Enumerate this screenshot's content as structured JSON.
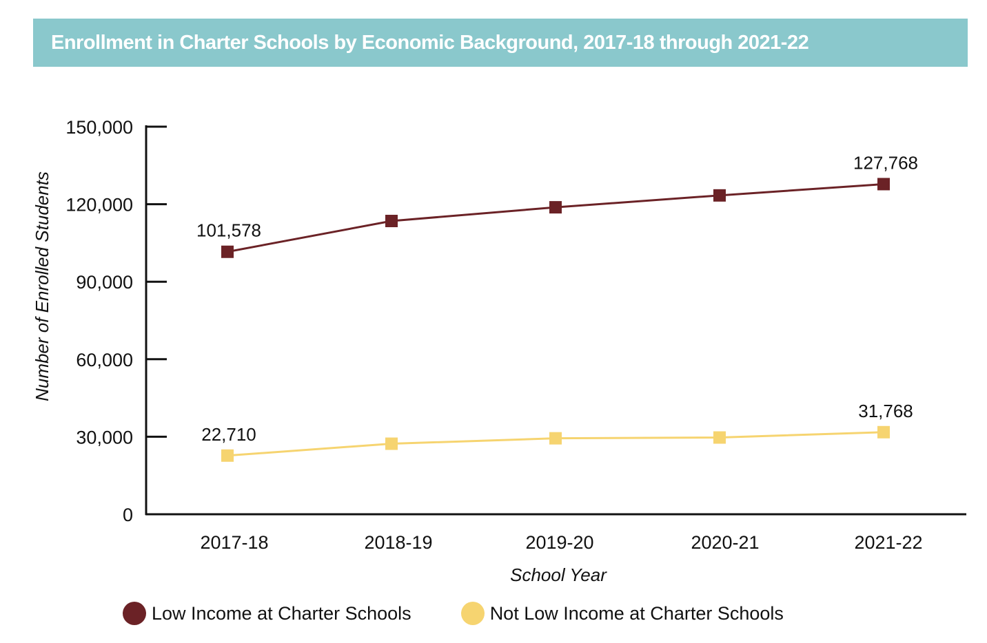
{
  "colors": {
    "banner": "#8ac8cc",
    "axis": "#111111",
    "low_income": "#6b2226",
    "not_low_income": "#f6d470"
  },
  "chart_data": {
    "type": "line",
    "title": "Enrollment in Charter Schools by Economic Background, 2017-18 through 2021-22",
    "xlabel": "School Year",
    "ylabel": "Number of Enrolled Students",
    "categories": [
      "2017-18",
      "2018-19",
      "2019-20",
      "2020-21",
      "2021-22"
    ],
    "ylim": [
      0,
      150000
    ],
    "yticks": [
      0,
      30000,
      60000,
      90000,
      120000,
      150000
    ],
    "ytick_labels": [
      "0",
      "30,000",
      "60,000",
      "90,000",
      "120,000",
      "150,000"
    ],
    "grid": false,
    "legend_position": "bottom",
    "series": [
      {
        "name": "Low Income at Charter Schools",
        "color": "#6b2226",
        "values": [
          101578,
          113500,
          118800,
          123400,
          127768
        ],
        "labels": [
          {
            "index": 0,
            "text": "101,578"
          },
          {
            "index": 4,
            "text": "127,768"
          }
        ]
      },
      {
        "name": "Not Low Income at Charter Schools",
        "color": "#f6d470",
        "values": [
          22710,
          27300,
          29400,
          29700,
          31768
        ],
        "labels": [
          {
            "index": 0,
            "text": "22,710"
          },
          {
            "index": 4,
            "text": "31,768"
          }
        ]
      }
    ]
  }
}
